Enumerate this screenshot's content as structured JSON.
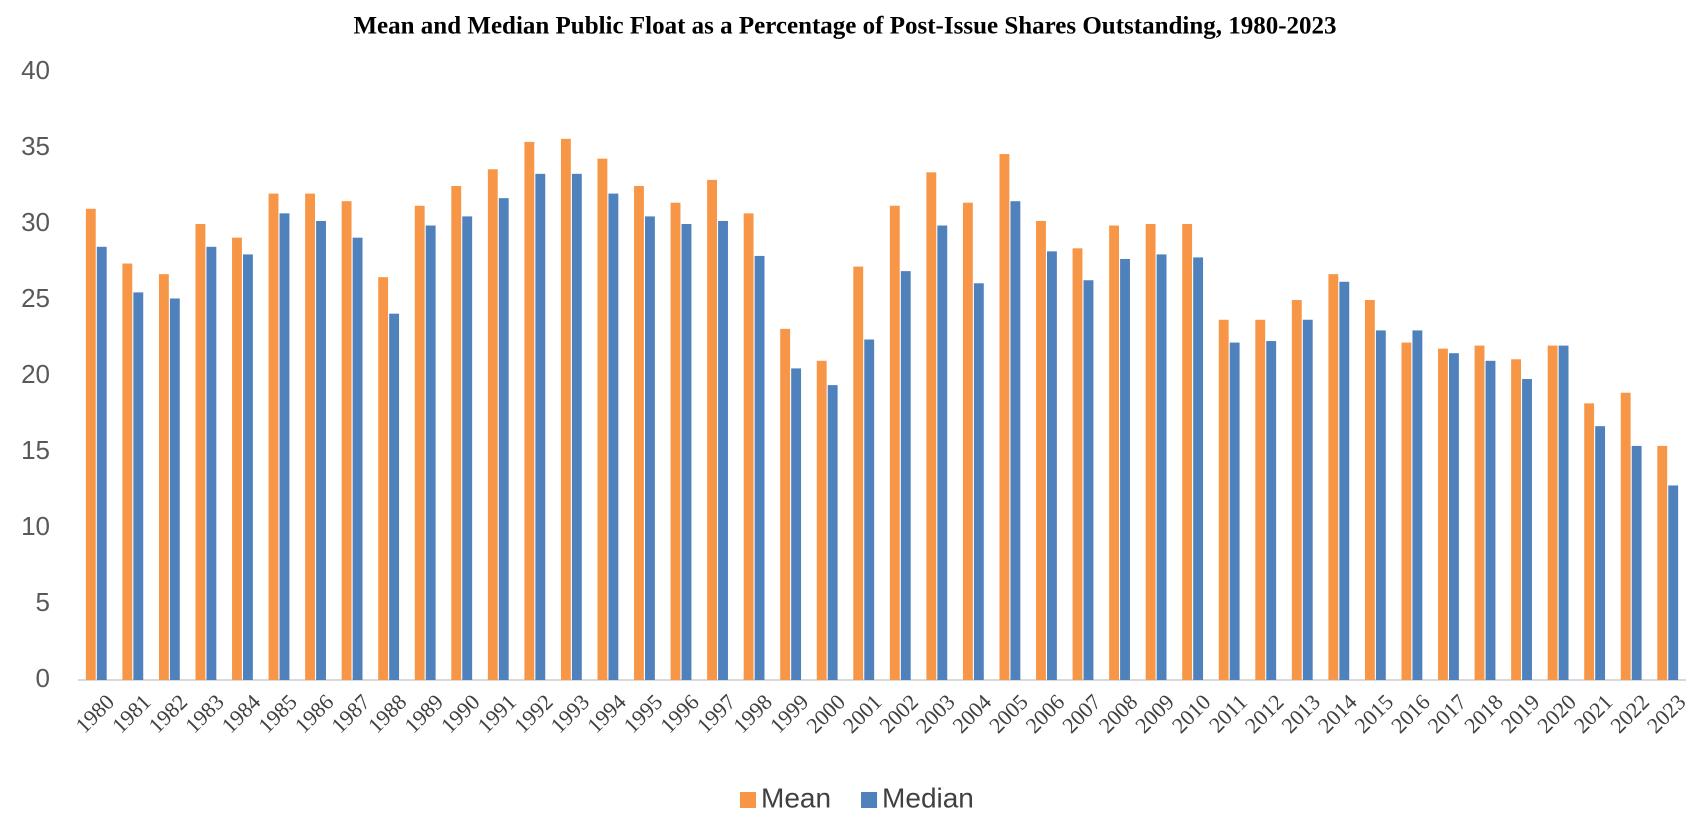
{
  "chart_data": {
    "type": "bar",
    "title": "Mean and Median Public Float as a Percentage of Post-Issue Shares Outstanding, 1980-2023",
    "categories": [
      "1980",
      "1981",
      "1982",
      "1983",
      "1984",
      "1985",
      "1986",
      "1987",
      "1988",
      "1989",
      "1990",
      "1991",
      "1992",
      "1993",
      "1994",
      "1995",
      "1996",
      "1997",
      "1998",
      "1999",
      "2000",
      "2001",
      "2002",
      "2003",
      "2004",
      "2005",
      "2006",
      "2007",
      "2008",
      "2009",
      "2010",
      "2011",
      "2012",
      "2013",
      "2014",
      "2015",
      "2016",
      "2017",
      "2018",
      "2019",
      "2020",
      "2021",
      "2022",
      "2023"
    ],
    "series": [
      {
        "name": "Mean",
        "color": "#f79646",
        "values": [
          31.0,
          27.4,
          26.7,
          30.0,
          29.1,
          32.0,
          32.0,
          31.5,
          26.5,
          31.2,
          32.5,
          33.6,
          35.4,
          35.6,
          34.3,
          32.5,
          31.4,
          32.9,
          30.7,
          23.1,
          21.0,
          27.2,
          31.2,
          33.4,
          31.4,
          34.6,
          30.2,
          28.4,
          29.9,
          30.0,
          30.0,
          23.7,
          23.7,
          25.0,
          26.7,
          25.0,
          22.2,
          21.8,
          22.0,
          21.1,
          22.0,
          18.2,
          18.9,
          15.4
        ]
      },
      {
        "name": "Median",
        "color": "#4f81bd",
        "values": [
          28.5,
          25.5,
          25.1,
          28.5,
          28.0,
          30.7,
          30.2,
          29.1,
          24.1,
          29.9,
          30.5,
          31.7,
          33.3,
          33.3,
          32.0,
          30.5,
          30.0,
          30.2,
          27.9,
          20.5,
          19.4,
          22.4,
          26.9,
          29.9,
          26.1,
          31.5,
          28.2,
          26.3,
          27.7,
          28.0,
          27.8,
          22.2,
          22.3,
          23.7,
          26.2,
          23.0,
          23.0,
          21.5,
          21.0,
          19.8,
          22.0,
          16.7,
          15.4,
          12.8
        ]
      }
    ],
    "ylim": [
      0,
      40
    ],
    "yticks": [
      0,
      5,
      10,
      15,
      20,
      25,
      30,
      35,
      40
    ],
    "grid": false,
    "legend": "bottom"
  }
}
